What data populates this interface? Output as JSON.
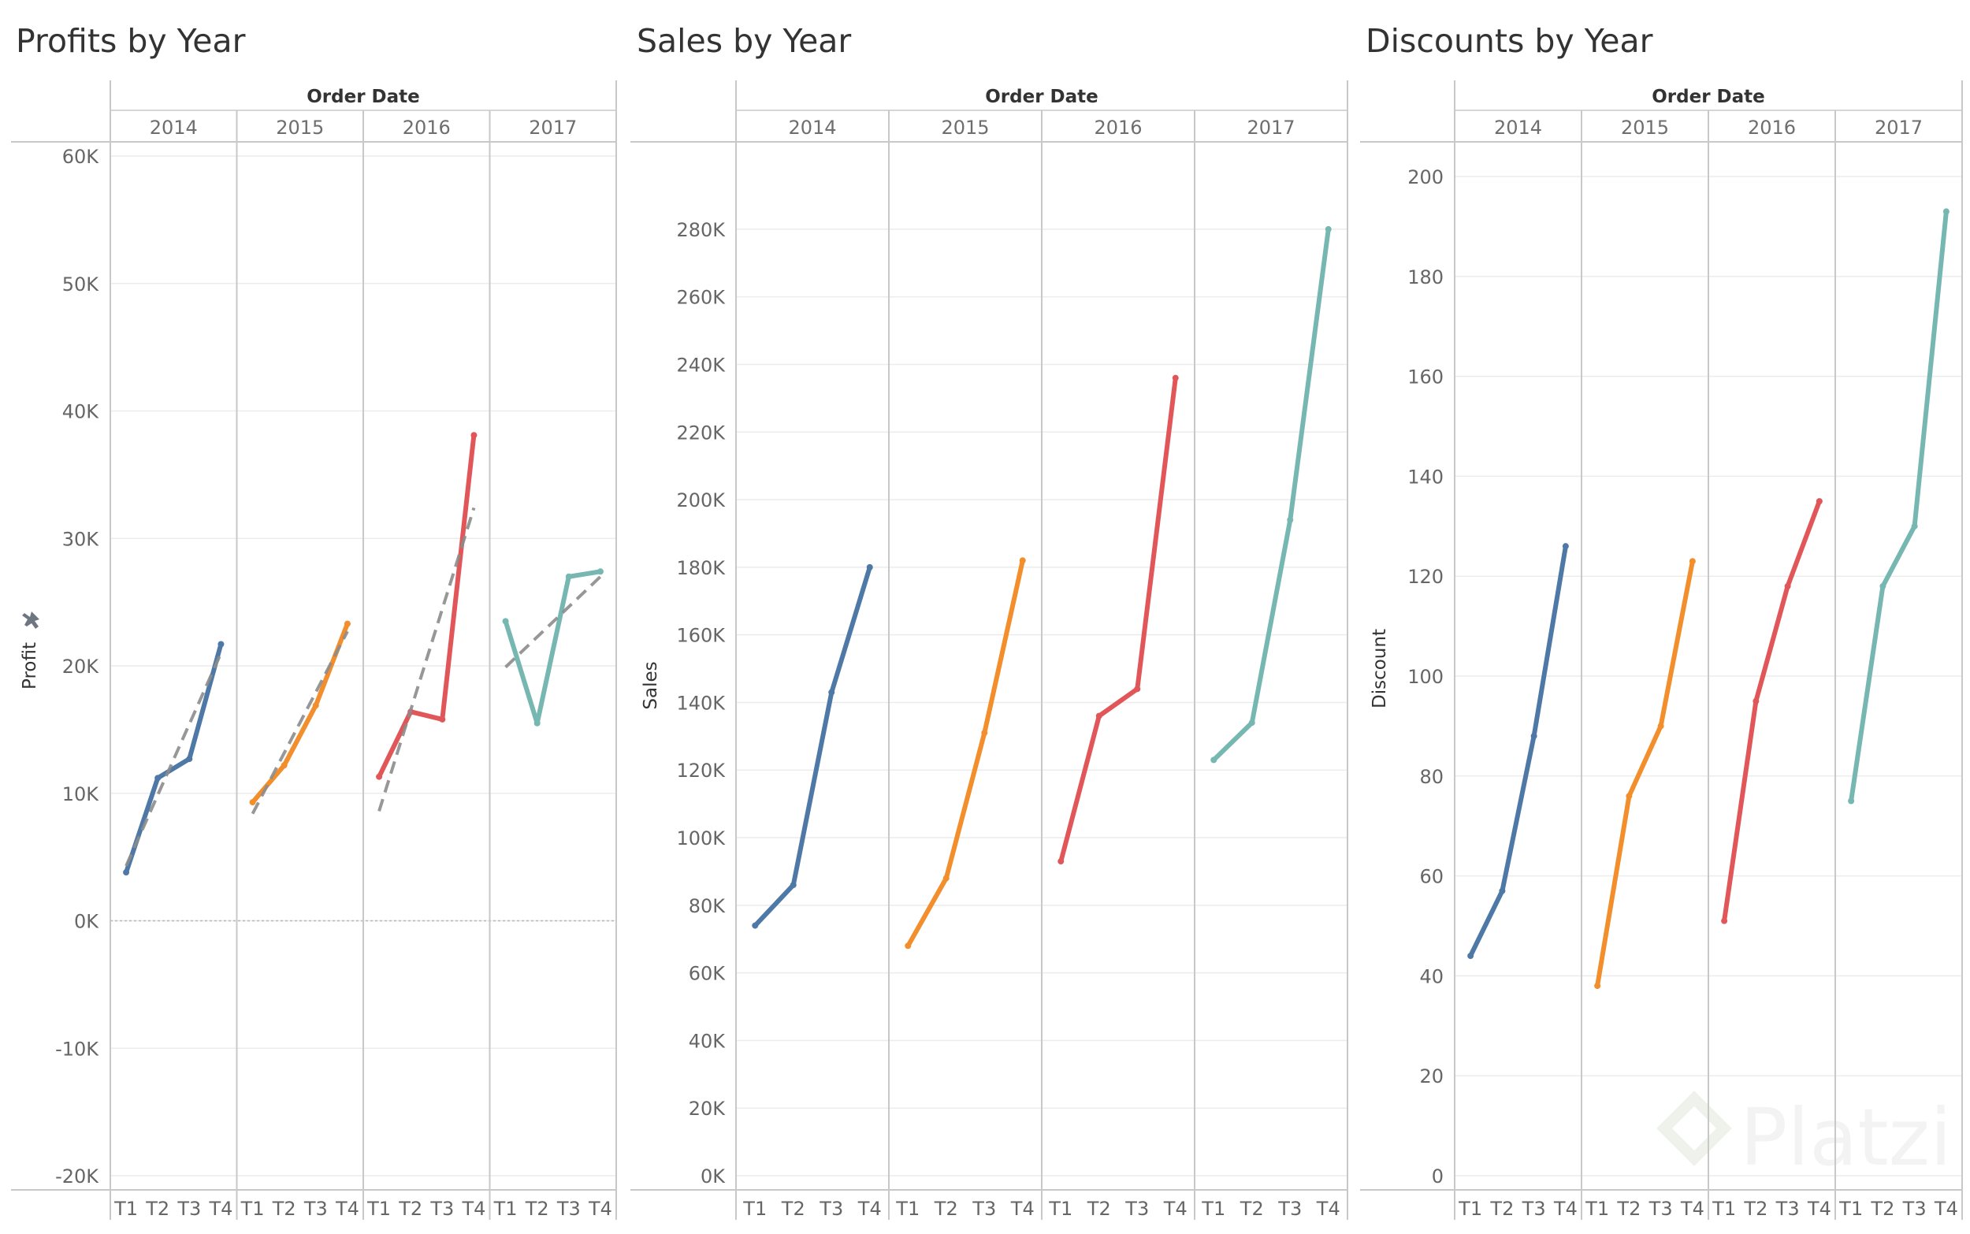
{
  "colors": {
    "2014": "#4e79a7",
    "2015": "#f28e2b",
    "2016": "#e15759",
    "2017": "#76b7b2",
    "trend": "#8c8c8c",
    "grid": "#ececec",
    "divider": "#c8c8c8",
    "text": "#333333",
    "tick_text": "#666666"
  },
  "pin_icon": "pin-icon",
  "watermark": "Platzi",
  "chart_data": [
    {
      "type": "line",
      "title": "Profits by Year",
      "header": "Order Date",
      "ylabel": "Profit",
      "ylim": [
        -20000,
        60000
      ],
      "yticks": [
        60000,
        50000,
        40000,
        30000,
        20000,
        10000,
        0,
        -10000,
        -20000
      ],
      "ytick_labels": [
        "60K",
        "50K",
        "40K",
        "30K",
        "20K",
        "10K",
        "0K",
        "-10K",
        "-20K"
      ],
      "years": [
        "2014",
        "2015",
        "2016",
        "2017"
      ],
      "quarters": [
        "T1",
        "T2",
        "T3",
        "T4"
      ],
      "zero_line": true,
      "series": [
        {
          "name": "2014",
          "values": [
            3800,
            11200,
            12700,
            21700
          ]
        },
        {
          "name": "2015",
          "values": [
            9300,
            12200,
            16900,
            23300
          ]
        },
        {
          "name": "2016",
          "values": [
            11300,
            16400,
            15800,
            38100
          ]
        },
        {
          "name": "2017",
          "values": [
            23500,
            15500,
            27000,
            27400
          ]
        }
      ],
      "trend_lines": [
        {
          "name": "2014",
          "values": [
            4300,
            21000
          ]
        },
        {
          "name": "2015",
          "values": [
            8400,
            22700
          ]
        },
        {
          "name": "2016",
          "values": [
            8600,
            32400
          ]
        },
        {
          "name": "2017",
          "values": [
            19900,
            27000
          ]
        }
      ]
    },
    {
      "type": "line",
      "title": "Sales by Year",
      "header": "Order Date",
      "ylabel": "Sales",
      "ylim": [
        0,
        290000
      ],
      "yticks": [
        280000,
        260000,
        240000,
        220000,
        200000,
        180000,
        160000,
        140000,
        120000,
        100000,
        80000,
        60000,
        40000,
        20000,
        0
      ],
      "ytick_labels": [
        "280K",
        "260K",
        "240K",
        "220K",
        "200K",
        "180K",
        "160K",
        "140K",
        "120K",
        "100K",
        "80K",
        "60K",
        "40K",
        "20K",
        "0K"
      ],
      "years": [
        "2014",
        "2015",
        "2016",
        "2017"
      ],
      "quarters": [
        "T1",
        "T2",
        "T3",
        "T4"
      ],
      "series": [
        {
          "name": "2014",
          "values": [
            74000,
            86000,
            143000,
            180000
          ]
        },
        {
          "name": "2015",
          "values": [
            68000,
            88000,
            131000,
            182000
          ]
        },
        {
          "name": "2016",
          "values": [
            93000,
            136000,
            144000,
            236000
          ]
        },
        {
          "name": "2017",
          "values": [
            123000,
            134000,
            194000,
            280000
          ]
        }
      ]
    },
    {
      "type": "line",
      "title": "Discounts by Year",
      "header": "Order Date",
      "ylabel": "Discount",
      "ylim": [
        0,
        203
      ],
      "yticks": [
        200,
        180,
        160,
        140,
        120,
        100,
        80,
        60,
        40,
        20,
        0
      ],
      "ytick_labels": [
        "200",
        "180",
        "160",
        "140",
        "120",
        "100",
        "80",
        "60",
        "40",
        "20",
        "0"
      ],
      "years": [
        "2014",
        "2015",
        "2016",
        "2017"
      ],
      "quarters": [
        "T1",
        "T2",
        "T3",
        "T4"
      ],
      "series": [
        {
          "name": "2014",
          "values": [
            44,
            57,
            88,
            126
          ]
        },
        {
          "name": "2015",
          "values": [
            38,
            76,
            90,
            123
          ]
        },
        {
          "name": "2016",
          "values": [
            51,
            95,
            118,
            135
          ]
        },
        {
          "name": "2017",
          "values": [
            75,
            118,
            130,
            193
          ]
        }
      ]
    }
  ]
}
